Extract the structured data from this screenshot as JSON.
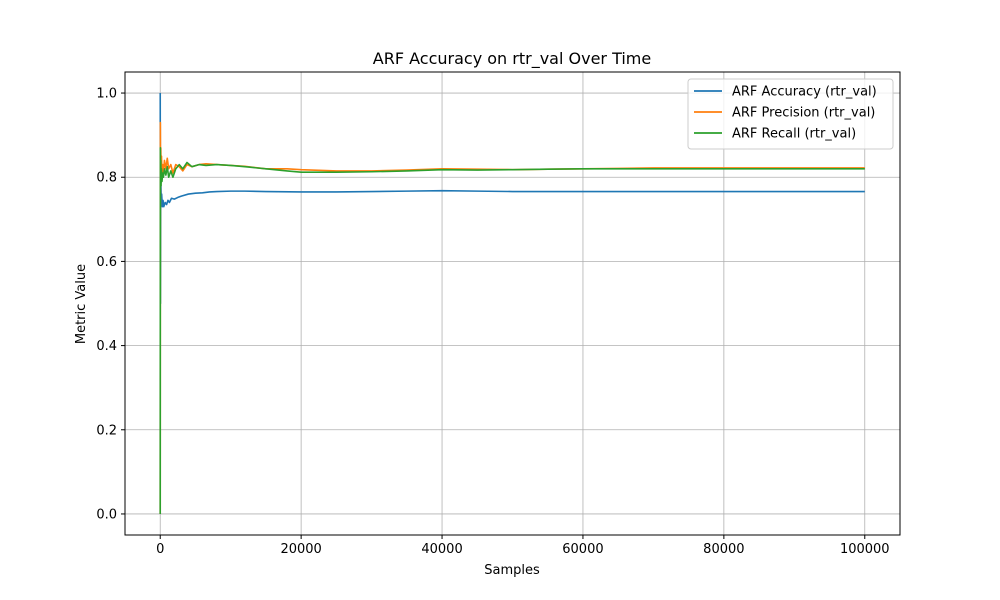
{
  "chart_data": {
    "type": "line",
    "title": "ARF Accuracy on rtr_val Over Time",
    "xlabel": "Samples",
    "ylabel": "Metric Value",
    "xlim": [
      -5000,
      105000
    ],
    "ylim": [
      -0.05,
      1.05
    ],
    "xticks": [
      0,
      20000,
      40000,
      60000,
      80000,
      100000
    ],
    "xtick_labels": [
      "0",
      "20000",
      "40000",
      "60000",
      "80000",
      "100000"
    ],
    "yticks": [
      0.0,
      0.2,
      0.4,
      0.6,
      0.8,
      1.0
    ],
    "ytick_labels": [
      "0.0",
      "0.2",
      "0.4",
      "0.6",
      "0.8",
      "1.0"
    ],
    "grid": true,
    "legend_position": "top-right",
    "series": [
      {
        "name": "ARF Accuracy (rtr_val)",
        "color": "#1f77b4",
        "x": [
          0,
          30,
          60,
          100,
          150,
          200,
          300,
          400,
          500,
          700,
          900,
          1100,
          1300,
          1600,
          2000,
          2500,
          3000,
          4000,
          5000,
          6000,
          7000,
          8000,
          10000,
          12000,
          15000,
          20000,
          25000,
          30000,
          35000,
          40000,
          45000,
          50000,
          55000,
          60000,
          65000,
          70000,
          75000,
          80000,
          85000,
          90000,
          95000,
          100000
        ],
        "y": [
          1.0,
          0.5,
          0.72,
          0.78,
          0.74,
          0.76,
          0.73,
          0.745,
          0.73,
          0.74,
          0.735,
          0.745,
          0.74,
          0.75,
          0.748,
          0.752,
          0.755,
          0.76,
          0.762,
          0.763,
          0.765,
          0.766,
          0.767,
          0.767,
          0.766,
          0.765,
          0.765,
          0.766,
          0.767,
          0.768,
          0.767,
          0.766,
          0.766,
          0.766,
          0.766,
          0.766,
          0.766,
          0.766,
          0.766,
          0.766,
          0.766,
          0.766
        ]
      },
      {
        "name": "ARF Precision (rtr_val)",
        "color": "#ff7f0e",
        "x": [
          0,
          20,
          50,
          80,
          120,
          180,
          250,
          350,
          450,
          600,
          800,
          1000,
          1200,
          1500,
          1800,
          2200,
          2700,
          3200,
          3800,
          4500,
          5500,
          6500,
          8000,
          10000,
          12000,
          15000,
          18000,
          20000,
          25000,
          30000,
          35000,
          40000,
          45000,
          50000,
          55000,
          60000,
          65000,
          70000,
          75000,
          80000,
          85000,
          90000,
          95000,
          100000
        ],
        "y": [
          0.0,
          0.93,
          0.8,
          0.87,
          0.82,
          0.85,
          0.8,
          0.83,
          0.81,
          0.84,
          0.82,
          0.845,
          0.82,
          0.83,
          0.81,
          0.83,
          0.825,
          0.815,
          0.83,
          0.825,
          0.83,
          0.832,
          0.83,
          0.828,
          0.826,
          0.82,
          0.82,
          0.818,
          0.815,
          0.815,
          0.817,
          0.82,
          0.819,
          0.818,
          0.819,
          0.82,
          0.821,
          0.822,
          0.822,
          0.822,
          0.822,
          0.822,
          0.822,
          0.822
        ]
      },
      {
        "name": "ARF Recall (rtr_val)",
        "color": "#2ca02c",
        "x": [
          0,
          20,
          50,
          80,
          120,
          180,
          250,
          350,
          450,
          600,
          800,
          1000,
          1200,
          1500,
          1800,
          2200,
          2700,
          3200,
          3800,
          4500,
          5500,
          6500,
          8000,
          10000,
          12000,
          15000,
          18000,
          20000,
          25000,
          30000,
          35000,
          40000,
          45000,
          50000,
          55000,
          60000,
          65000,
          70000,
          75000,
          80000,
          85000,
          90000,
          95000,
          100000
        ],
        "y": [
          0.0,
          0.87,
          0.8,
          0.84,
          0.78,
          0.82,
          0.79,
          0.81,
          0.8,
          0.82,
          0.805,
          0.825,
          0.8,
          0.815,
          0.8,
          0.82,
          0.83,
          0.82,
          0.835,
          0.825,
          0.83,
          0.828,
          0.83,
          0.828,
          0.825,
          0.82,
          0.815,
          0.812,
          0.812,
          0.813,
          0.815,
          0.818,
          0.817,
          0.818,
          0.819,
          0.82,
          0.82,
          0.82,
          0.82,
          0.82,
          0.82,
          0.82,
          0.82,
          0.82
        ]
      }
    ]
  }
}
